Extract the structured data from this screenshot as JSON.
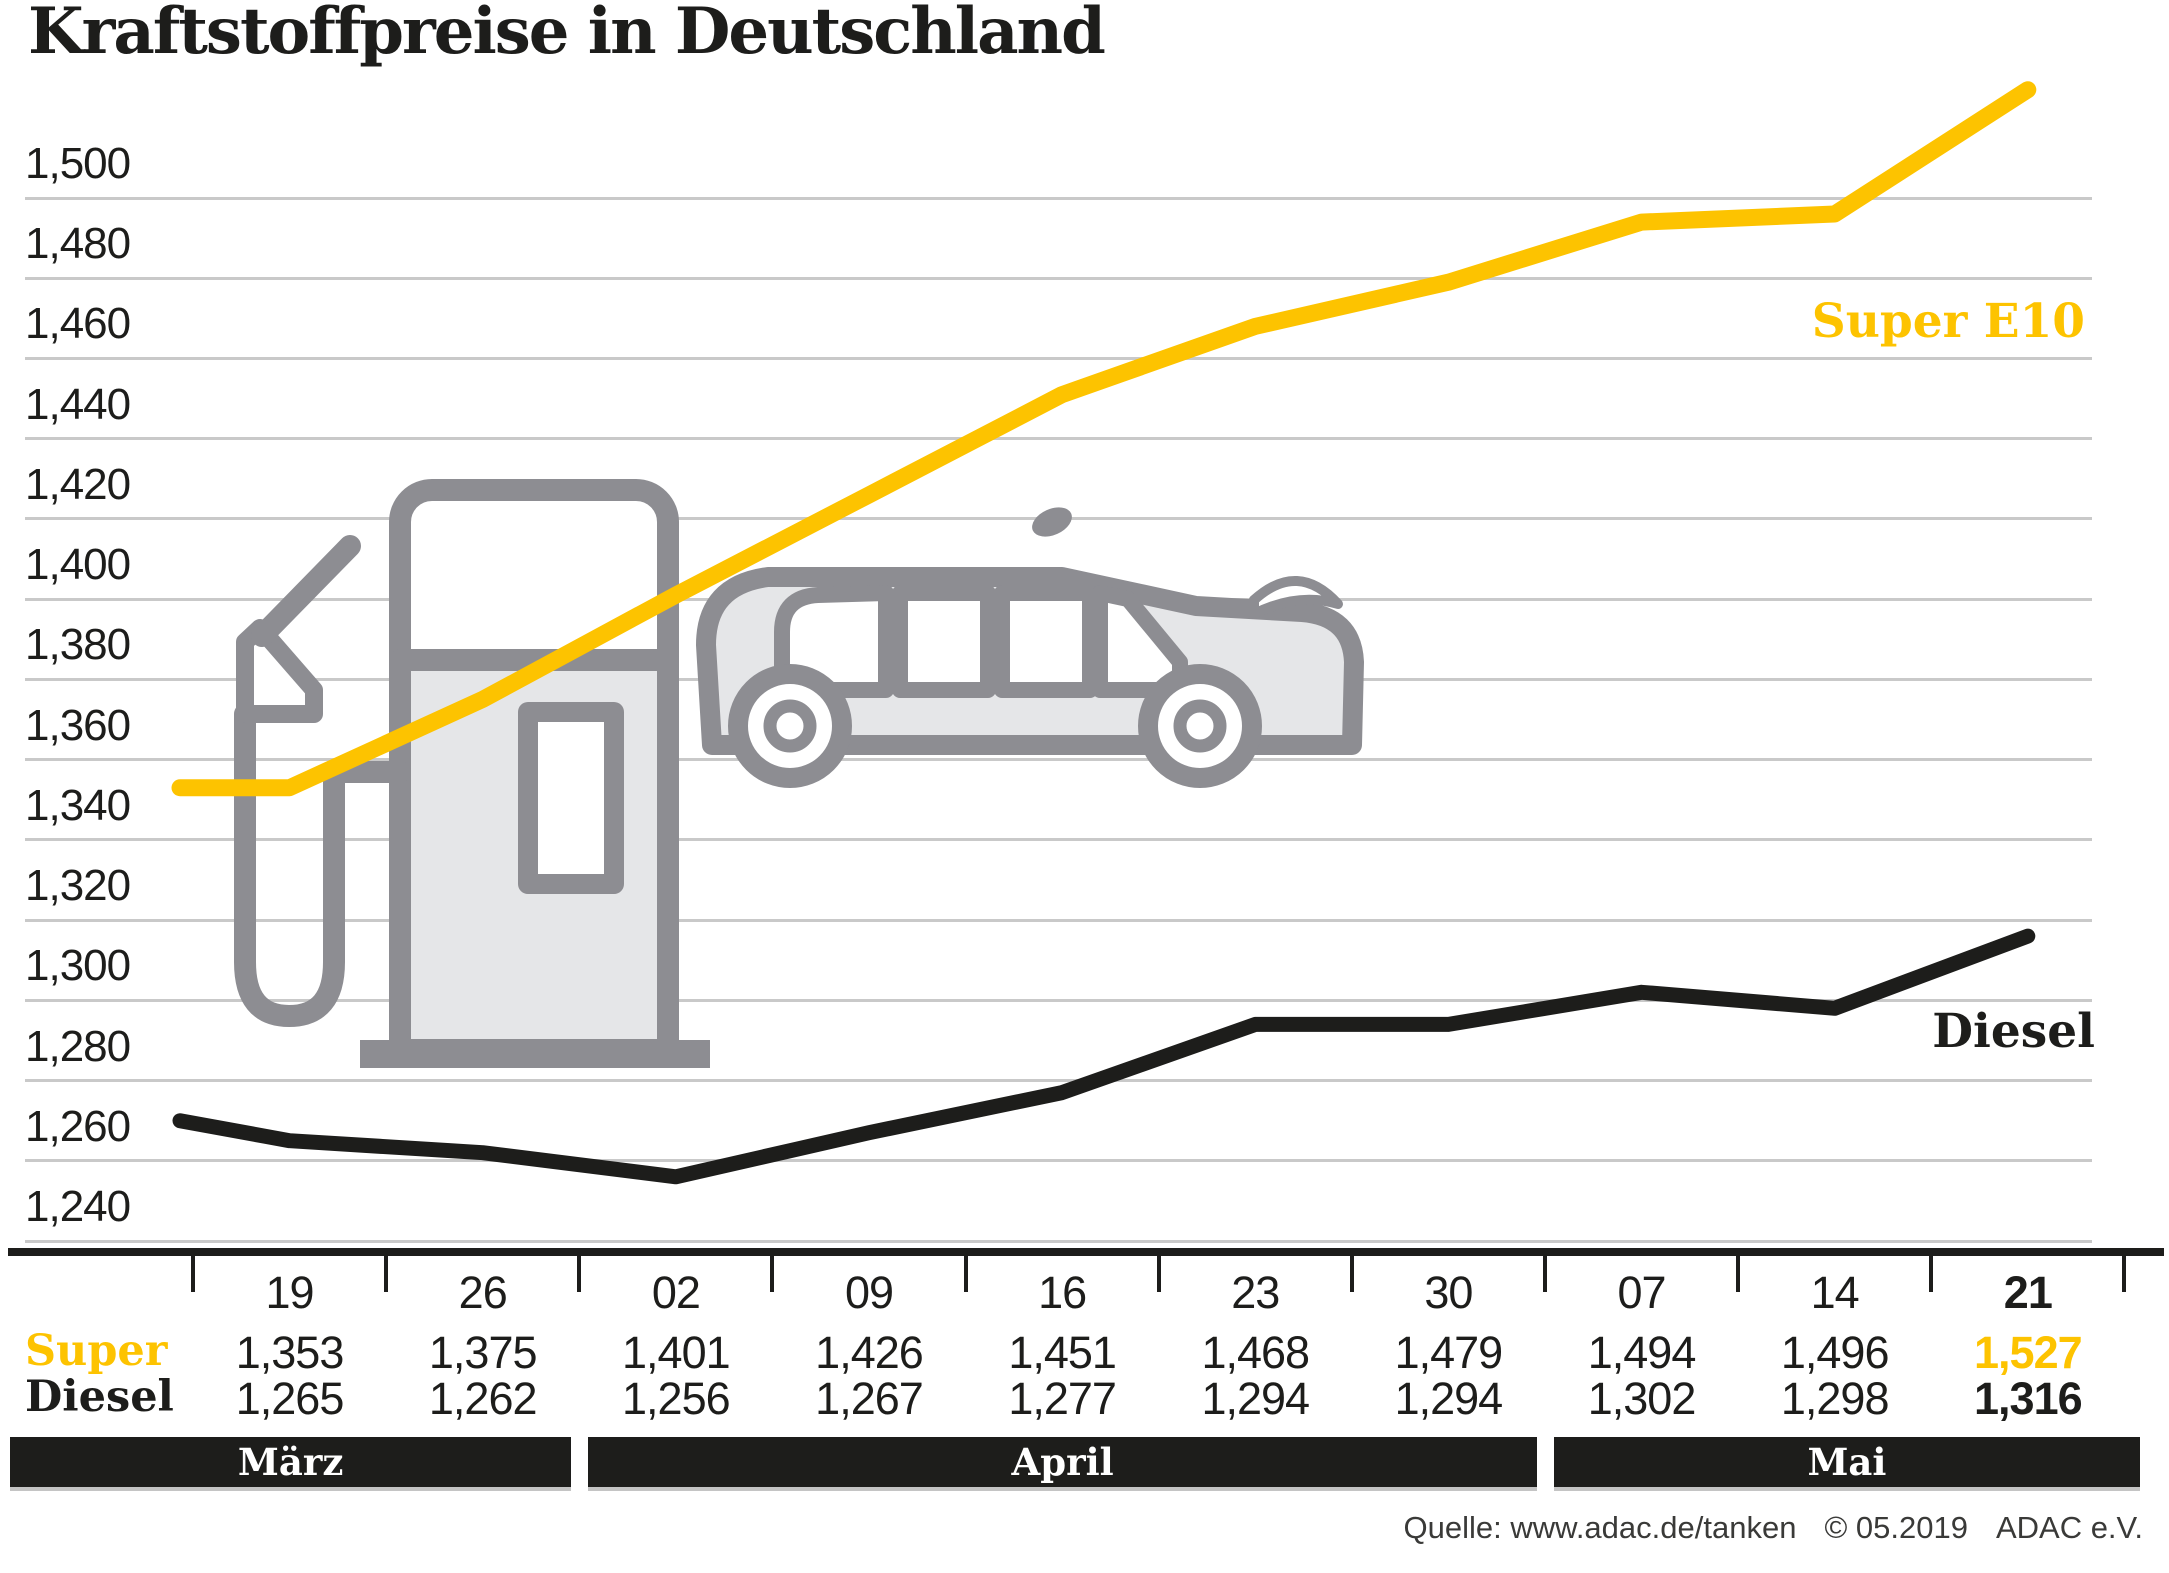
{
  "title": "Kraftstoffpreise in Deutschland",
  "colors": {
    "super_e10": "#FDC300",
    "diesel": "#1d1d1b",
    "gridline": "#c9c9c9",
    "pictogram_stroke": "#8d8d92",
    "pictogram_fill": "#e5e6e8",
    "month_bar_bg": "#1d1d1b",
    "month_bar_text": "#ffffff"
  },
  "chart_data": {
    "type": "line",
    "title": "Kraftstoffpreise in Deutschland",
    "grid": true,
    "legend_position": "inline-right-of-lines",
    "y_axis": {
      "min": 1.24,
      "max": 1.5,
      "step": 0.02,
      "tick_labels": [
        "1,500",
        "1,480",
        "1,460",
        "1,440",
        "1,420",
        "1,400",
        "1,380",
        "1,360",
        "1,340",
        "1,320",
        "1,300",
        "1,280",
        "1,260",
        "1,240"
      ]
    },
    "x": {
      "dates": [
        "19",
        "26",
        "02",
        "09",
        "16",
        "23",
        "30",
        "07",
        "14",
        "21"
      ],
      "months": [
        {
          "label": "März",
          "span": [
            0,
            1
          ]
        },
        {
          "label": "April",
          "span": [
            2,
            6
          ]
        },
        {
          "label": "Mai",
          "span": [
            7,
            9
          ]
        }
      ]
    },
    "series": [
      {
        "name": "Super E10",
        "color": "#FDC300",
        "values": [
          1.353,
          1.375,
          1.401,
          1.426,
          1.451,
          1.468,
          1.479,
          1.494,
          1.496,
          1.527
        ]
      },
      {
        "name": "Diesel",
        "color": "#1d1d1b",
        "values": [
          1.265,
          1.262,
          1.256,
          1.267,
          1.277,
          1.294,
          1.294,
          1.302,
          1.298,
          1.316
        ]
      }
    ],
    "lead_in": {
      "super": 1.353,
      "diesel": 1.27
    }
  },
  "table": {
    "rows": [
      {
        "label": "Super",
        "values": [
          "1,353",
          "1,375",
          "1,401",
          "1,426",
          "1,451",
          "1,468",
          "1,479",
          "1,494",
          "1,496",
          "1,527"
        ]
      },
      {
        "label": "Diesel",
        "values": [
          "1,265",
          "1,262",
          "1,256",
          "1,267",
          "1,277",
          "1,294",
          "1,294",
          "1,302",
          "1,298",
          "1,316"
        ]
      }
    ]
  },
  "source": {
    "label": "Quelle: www.adac.de/tanken",
    "copyright": "© 05.2019",
    "org": "ADAC e.V."
  }
}
